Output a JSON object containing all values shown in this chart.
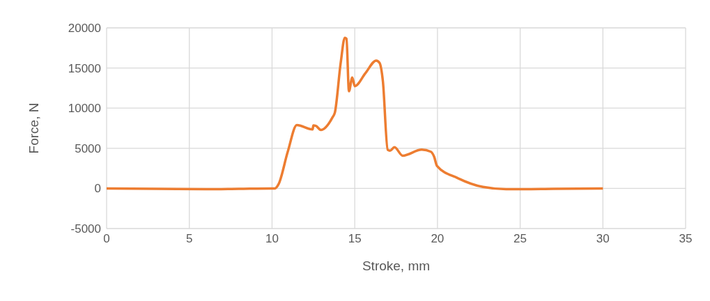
{
  "chart_data": {
    "type": "line",
    "xlabel": "Stroke, mm",
    "ylabel": "Force, N",
    "xlim": [
      0,
      35
    ],
    "xticks": [
      0,
      5,
      10,
      15,
      20,
      25,
      30,
      35
    ],
    "ylim": [
      -5000,
      20000
    ],
    "yticks": [
      -5000,
      0,
      5000,
      10000,
      15000,
      20000
    ],
    "grid": true,
    "legend": false,
    "marker": "none",
    "line_style": "solid",
    "series": [
      {
        "color": "#ed7d31",
        "x": [
          0,
          3,
          6,
          8,
          10,
          10.17,
          10.4,
          10.95,
          11.5,
          12.45,
          12.5,
          12.65,
          12.95,
          13.65,
          13.8,
          14.15,
          14.4,
          14.5,
          14.65,
          14.85,
          15.0,
          15.65,
          16.3,
          16.5,
          16.7,
          16.99,
          17.13,
          17.4,
          17.9,
          19.05,
          19.6,
          19.8,
          19.97,
          21.2,
          22.75,
          24.15,
          25,
          27,
          30
        ],
        "values": [
          0,
          -50,
          -100,
          -50,
          0,
          0,
          550,
          4570,
          7890,
          7340,
          7840,
          7790,
          7290,
          8840,
          9470,
          15630,
          18770,
          18640,
          12110,
          13820,
          12740,
          14370,
          15930,
          15630,
          13370,
          4820,
          4700,
          5130,
          4070,
          4820,
          4570,
          3940,
          2810,
          1310,
          180,
          -100,
          -100,
          -50,
          0
        ]
      }
    ]
  }
}
